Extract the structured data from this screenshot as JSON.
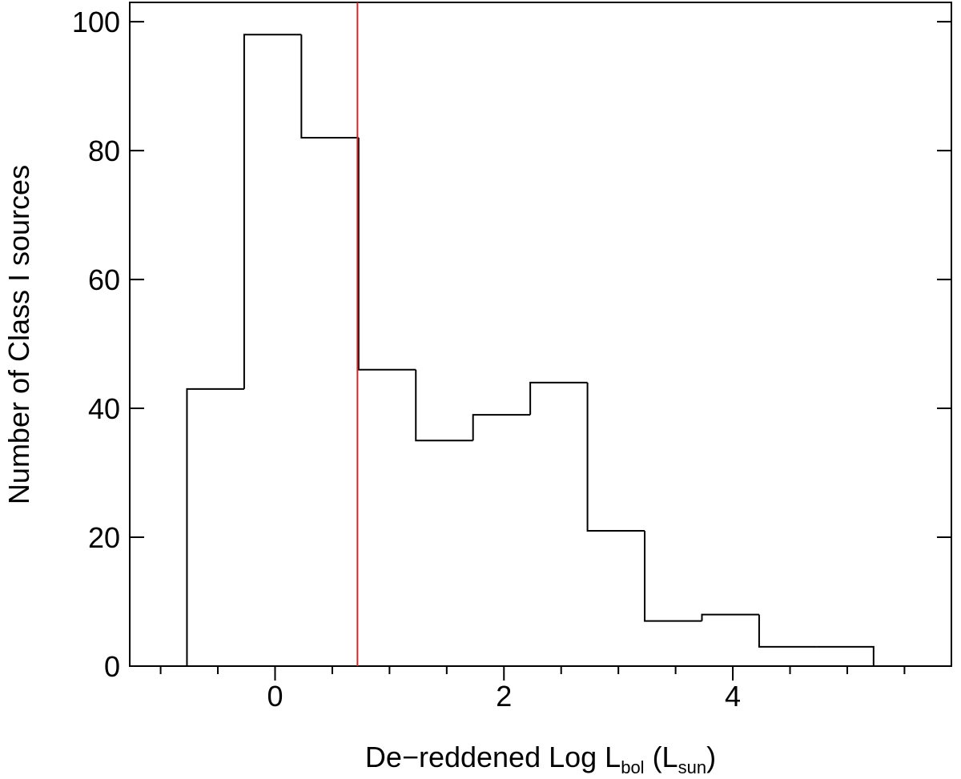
{
  "chart_data": {
    "type": "histogram",
    "ylabel": "Number of Class I sources",
    "xlabel": [
      "De−reddened Log L",
      "bol",
      " (L",
      "sun",
      ")"
    ],
    "bins": [
      -0.77,
      -0.27,
      0.23,
      0.73,
      1.23,
      1.73,
      2.23,
      2.73,
      3.23,
      3.73,
      4.23,
      4.73,
      5.23
    ],
    "values": [
      43,
      98,
      82,
      46,
      35,
      39,
      44,
      21,
      7,
      8,
      3,
      3
    ],
    "color": "#000000",
    "vline": {
      "x": 0.72,
      "color": "#d62728"
    },
    "xlim": [
      -1.27,
      5.91
    ],
    "ylim": [
      0,
      103
    ],
    "xticks": [
      0,
      2,
      4
    ],
    "xminor": [
      -1,
      -0.5,
      0.5,
      1,
      1.5,
      2.5,
      3,
      3.5,
      4.5,
      5,
      5.5
    ],
    "yticks": [
      0,
      20,
      40,
      60,
      80,
      100
    ]
  }
}
